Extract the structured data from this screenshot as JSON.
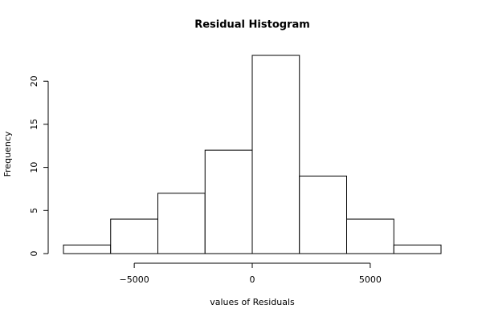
{
  "chart_data": {
    "type": "histogram",
    "title": "Residual Histogram",
    "x_label": "values of Residuals",
    "y_label": "Frequency",
    "bins": [
      -8000,
      -6000,
      -4000,
      -2000,
      0,
      2000,
      4000,
      6000,
      8000
    ],
    "values": [
      1,
      4,
      7,
      12,
      23,
      9,
      4,
      1
    ],
    "color": "#ffffff",
    "edge_color": "#000000",
    "xlim": [
      -8000,
      8000
    ],
    "xticks": [
      {
        "value": -5000,
        "label": "−5000"
      },
      0,
      5000
    ],
    "ylim": [
      0,
      23
    ],
    "yticks": [
      0,
      5,
      10,
      15,
      20
    ],
    "grid": false
  }
}
